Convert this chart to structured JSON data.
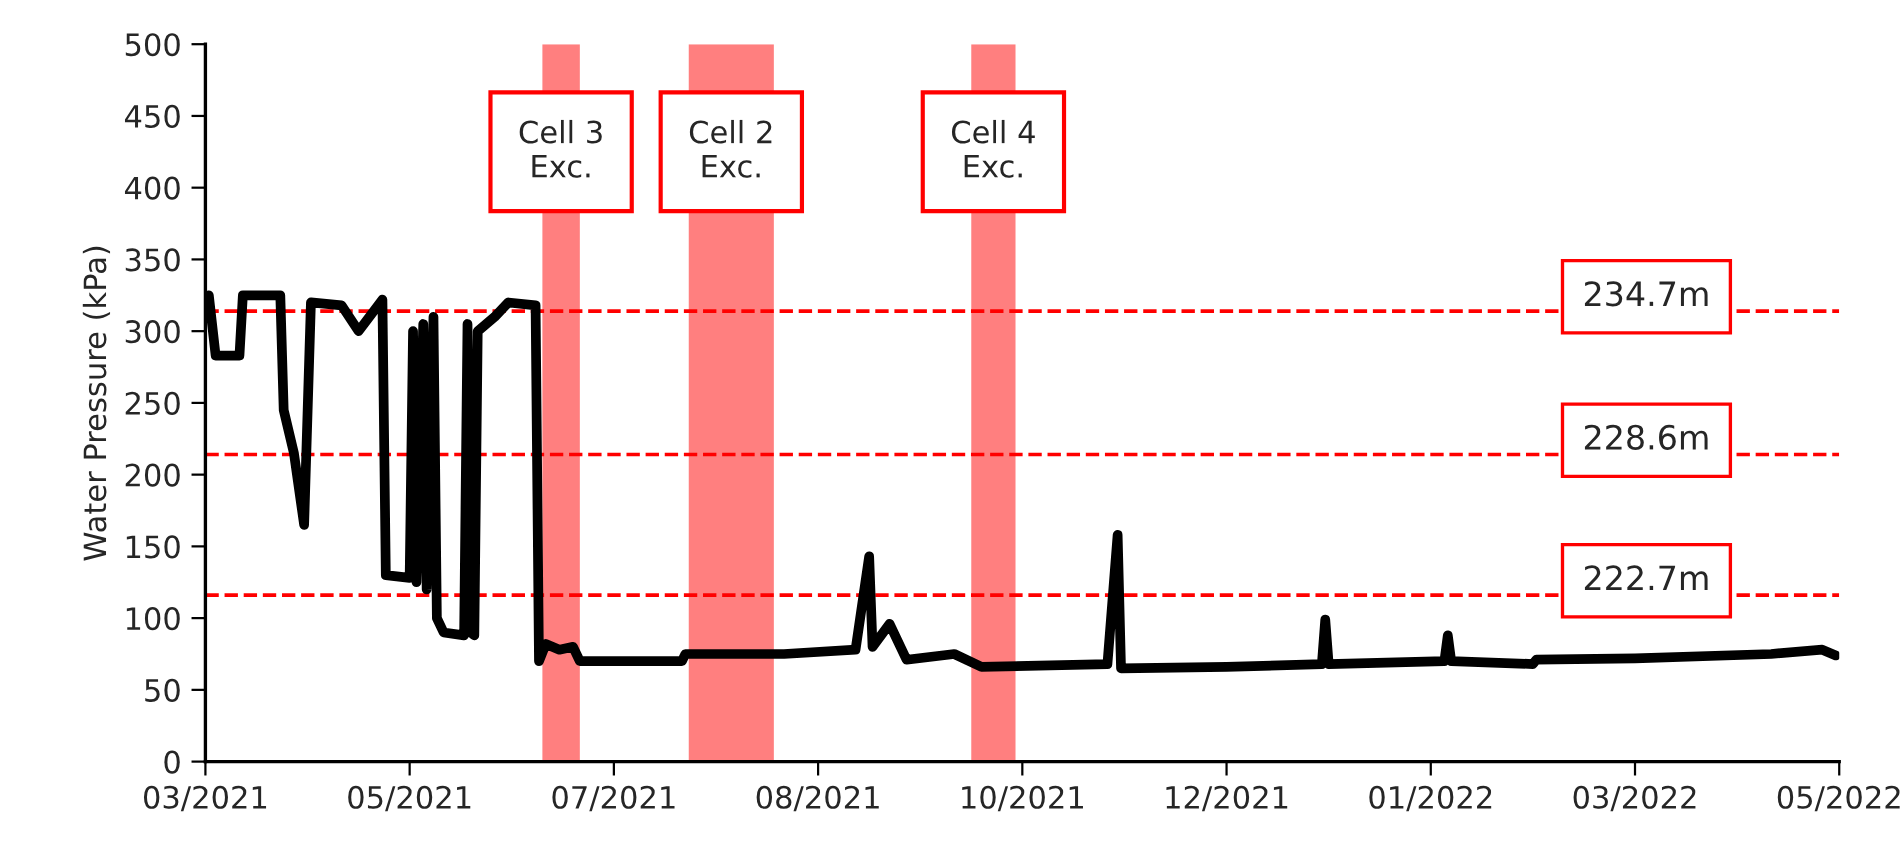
{
  "chart_data": {
    "type": "line",
    "ylabel": "Water Pressure (kPa)",
    "x": [
      "2021-03-02",
      "2021-03-04",
      "2021-03-11",
      "2021-03-12",
      "2021-03-23",
      "2021-03-24",
      "2021-03-27",
      "2021-03-30",
      "2021-04-01",
      "2021-04-10",
      "2021-04-15",
      "2021-04-22",
      "2021-04-23",
      "2021-04-30",
      "2021-05-01",
      "2021-05-02",
      "2021-05-04",
      "2021-05-05",
      "2021-05-07",
      "2021-05-08",
      "2021-05-10",
      "2021-05-16",
      "2021-05-17",
      "2021-05-18",
      "2021-05-19",
      "2021-05-20",
      "2021-05-25",
      "2021-05-29",
      "2021-06-06",
      "2021-06-07",
      "2021-06-09",
      "2021-06-13",
      "2021-06-17",
      "2021-06-19",
      "2021-07-19",
      "2021-07-20",
      "2021-08-18",
      "2021-09-08",
      "2021-09-12",
      "2021-09-13",
      "2021-09-18",
      "2021-09-23",
      "2021-10-07",
      "2021-10-15",
      "2021-11-21",
      "2021-11-24",
      "2021-11-25",
      "2021-12-26",
      "2022-01-23",
      "2022-01-24",
      "2022-01-25",
      "2022-02-28",
      "2022-03-01",
      "2022-03-02",
      "2022-03-26",
      "2022-03-27",
      "2022-04-25",
      "2022-06-04",
      "2022-06-19",
      "2022-06-23"
    ],
    "series": [
      {
        "color": "#000000",
        "values": [
          325,
          283,
          283,
          325,
          325,
          245,
          215,
          165,
          320,
          318,
          300,
          322,
          130,
          128,
          300,
          125,
          305,
          120,
          310,
          100,
          90,
          88,
          305,
          90,
          88,
          300,
          310,
          320,
          318,
          70,
          82,
          78,
          80,
          70,
          70,
          75,
          75,
          78,
          143,
          80,
          96,
          71,
          75,
          66,
          68,
          158,
          65,
          66,
          68,
          99,
          68,
          70,
          88,
          70,
          68,
          71,
          72,
          75,
          78,
          74
        ]
      }
    ],
    "xlim": [
      "2021-03-01",
      "2022-06-24"
    ],
    "xticks": [
      {
        "value": "2021-03-01",
        "label": "03/2021"
      },
      {
        "value": "2021-04-30",
        "label": "05/2021"
      },
      {
        "value": "2021-06-29",
        "label": "07/2021"
      },
      {
        "value": "2021-08-28",
        "label": "08/2021"
      },
      {
        "value": "2021-10-27",
        "label": "10/2021"
      },
      {
        "value": "2021-12-26",
        "label": "12/2021"
      },
      {
        "value": "2022-02-24",
        "label": "01/2022"
      },
      {
        "value": "2022-04-25",
        "label": "03/2022"
      },
      {
        "value": "2022-06-24",
        "label": "05/2022"
      }
    ],
    "ylim": [
      0,
      500
    ],
    "yticks": [
      0,
      50,
      100,
      150,
      200,
      250,
      300,
      350,
      400,
      450,
      500
    ],
    "grid": false,
    "legend": false,
    "marker": "none",
    "line_style": "solid",
    "ref_lines": [
      {
        "axis": "y",
        "value": 314,
        "label": "234.7m",
        "color": "#ff0000",
        "line_style": "dashed"
      },
      {
        "axis": "y",
        "value": 214,
        "label": "228.6m",
        "color": "#ff0000",
        "line_style": "dashed"
      },
      {
        "axis": "y",
        "value": 116,
        "label": "222.7m",
        "color": "#ff0000",
        "line_style": "dashed"
      }
    ],
    "bands": [
      {
        "axis": "x",
        "from": "2021-06-08",
        "to": "2021-06-19",
        "label": "Cell 3\nExc.",
        "color": "#ff7f7f"
      },
      {
        "axis": "x",
        "from": "2021-07-21",
        "to": "2021-08-15",
        "label": "Cell 2\nExc.",
        "color": "#ff7f7f"
      },
      {
        "axis": "x",
        "from": "2021-10-12",
        "to": "2021-10-25",
        "label": "Cell 4\nExc.",
        "color": "#ff7f7f"
      }
    ]
  }
}
